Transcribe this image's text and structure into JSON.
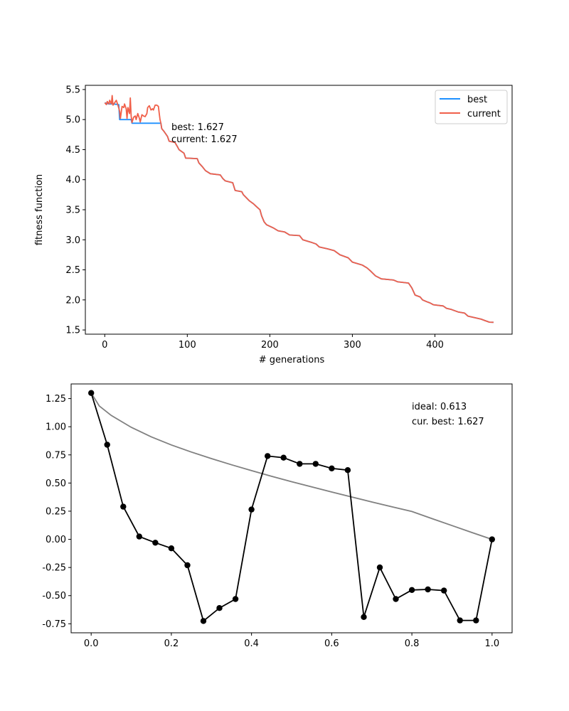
{
  "chart_data": [
    {
      "type": "line",
      "xlabel": "# generations",
      "ylabel": "fitness function",
      "xlim": [
        -23.5,
        493.5
      ],
      "ylim": [
        1.43,
        5.57
      ],
      "xticks": [
        0,
        100,
        200,
        300,
        400
      ],
      "yticks": [
        1.5,
        2.0,
        2.5,
        3.0,
        3.5,
        4.0,
        4.5,
        5.0,
        5.5
      ],
      "grid": false,
      "legend_position": "top-right",
      "colors": {
        "best": "#1e90ff",
        "current": "#f0604a"
      },
      "annotations": [
        "best: 1.627",
        "current: 1.627"
      ],
      "series": [
        {
          "name": "best",
          "points": [
            [
              0,
              5.28
            ],
            [
              5,
              5.26
            ],
            [
              10,
              5.26
            ],
            [
              17,
              5.25
            ],
            [
              18,
              5.0
            ],
            [
              32,
              5.0
            ],
            [
              33,
              4.94
            ],
            [
              68,
              4.94
            ],
            [
              69,
              4.85
            ],
            [
              72,
              4.8
            ],
            [
              76,
              4.72
            ],
            [
              78,
              4.64
            ],
            [
              85,
              4.62
            ],
            [
              88,
              4.55
            ],
            [
              90,
              4.5
            ],
            [
              96,
              4.44
            ],
            [
              98,
              4.36
            ],
            [
              112,
              4.35
            ],
            [
              114,
              4.28
            ],
            [
              118,
              4.22
            ],
            [
              122,
              4.15
            ],
            [
              128,
              4.1
            ],
            [
              140,
              4.08
            ],
            [
              143,
              4.02
            ],
            [
              146,
              3.98
            ],
            [
              155,
              3.95
            ],
            [
              158,
              3.82
            ],
            [
              166,
              3.8
            ],
            [
              168,
              3.75
            ],
            [
              175,
              3.65
            ],
            [
              180,
              3.6
            ],
            [
              184,
              3.55
            ],
            [
              188,
              3.5
            ],
            [
              190,
              3.4
            ],
            [
              193,
              3.3
            ],
            [
              196,
              3.25
            ],
            [
              204,
              3.2
            ],
            [
              210,
              3.15
            ],
            [
              218,
              3.13
            ],
            [
              224,
              3.08
            ],
            [
              236,
              3.07
            ],
            [
              240,
              3.0
            ],
            [
              250,
              2.96
            ],
            [
              256,
              2.93
            ],
            [
              260,
              2.88
            ],
            [
              270,
              2.85
            ],
            [
              278,
              2.82
            ],
            [
              285,
              2.75
            ],
            [
              295,
              2.7
            ],
            [
              300,
              2.63
            ],
            [
              312,
              2.58
            ],
            [
              318,
              2.53
            ],
            [
              322,
              2.48
            ],
            [
              328,
              2.4
            ],
            [
              335,
              2.35
            ],
            [
              350,
              2.33
            ],
            [
              355,
              2.3
            ],
            [
              368,
              2.28
            ],
            [
              372,
              2.2
            ],
            [
              376,
              2.08
            ],
            [
              382,
              2.05
            ],
            [
              385,
              2.0
            ],
            [
              390,
              1.97
            ],
            [
              394,
              1.95
            ],
            [
              398,
              1.92
            ],
            [
              410,
              1.9
            ],
            [
              414,
              1.86
            ],
            [
              420,
              1.84
            ],
            [
              428,
              1.8
            ],
            [
              436,
              1.78
            ],
            [
              440,
              1.73
            ],
            [
              450,
              1.7
            ],
            [
              456,
              1.68
            ],
            [
              460,
              1.66
            ],
            [
              466,
              1.63
            ],
            [
              471,
              1.627
            ]
          ]
        },
        {
          "name": "current",
          "points": [
            [
              0,
              5.28
            ],
            [
              2,
              5.25
            ],
            [
              3,
              5.3
            ],
            [
              5,
              5.26
            ],
            [
              6,
              5.32
            ],
            [
              8,
              5.26
            ],
            [
              9,
              5.4
            ],
            [
              10,
              5.24
            ],
            [
              12,
              5.28
            ],
            [
              14,
              5.32
            ],
            [
              16,
              5.24
            ],
            [
              18,
              5.14
            ],
            [
              19,
              5.02
            ],
            [
              21,
              5.22
            ],
            [
              23,
              5.2
            ],
            [
              24,
              5.26
            ],
            [
              26,
              5.18
            ],
            [
              27,
              5.02
            ],
            [
              28,
              5.2
            ],
            [
              30,
              5.1
            ],
            [
              31,
              5.36
            ],
            [
              32,
              5.06
            ],
            [
              33,
              4.95
            ],
            [
              35,
              5.04
            ],
            [
              37,
              5.06
            ],
            [
              38,
              5.0
            ],
            [
              40,
              5.1
            ],
            [
              42,
              5.02
            ],
            [
              43,
              4.96
            ],
            [
              45,
              5.08
            ],
            [
              47,
              5.06
            ],
            [
              49,
              5.05
            ],
            [
              51,
              5.1
            ],
            [
              52,
              5.2
            ],
            [
              54,
              5.23
            ],
            [
              56,
              5.16
            ],
            [
              58,
              5.18
            ],
            [
              59,
              5.16
            ],
            [
              61,
              5.24
            ],
            [
              63,
              5.24
            ],
            [
              65,
              5.22
            ],
            [
              66,
              5.1
            ],
            [
              67,
              5.0
            ],
            [
              68,
              4.94
            ],
            [
              69,
              4.85
            ],
            [
              72,
              4.8
            ],
            [
              76,
              4.72
            ],
            [
              78,
              4.64
            ],
            [
              85,
              4.62
            ],
            [
              88,
              4.55
            ],
            [
              90,
              4.5
            ],
            [
              96,
              4.44
            ],
            [
              98,
              4.36
            ],
            [
              112,
              4.35
            ],
            [
              114,
              4.28
            ],
            [
              118,
              4.22
            ],
            [
              122,
              4.15
            ],
            [
              128,
              4.1
            ],
            [
              140,
              4.08
            ],
            [
              143,
              4.02
            ],
            [
              146,
              3.98
            ],
            [
              155,
              3.95
            ],
            [
              158,
              3.82
            ],
            [
              166,
              3.8
            ],
            [
              168,
              3.75
            ],
            [
              175,
              3.65
            ],
            [
              180,
              3.6
            ],
            [
              184,
              3.55
            ],
            [
              188,
              3.5
            ],
            [
              190,
              3.4
            ],
            [
              193,
              3.3
            ],
            [
              196,
              3.25
            ],
            [
              204,
              3.2
            ],
            [
              210,
              3.15
            ],
            [
              218,
              3.13
            ],
            [
              224,
              3.08
            ],
            [
              236,
              3.07
            ],
            [
              240,
              3.0
            ],
            [
              250,
              2.96
            ],
            [
              256,
              2.93
            ],
            [
              260,
              2.88
            ],
            [
              270,
              2.85
            ],
            [
              278,
              2.82
            ],
            [
              285,
              2.75
            ],
            [
              295,
              2.7
            ],
            [
              300,
              2.63
            ],
            [
              312,
              2.58
            ],
            [
              318,
              2.53
            ],
            [
              322,
              2.48
            ],
            [
              328,
              2.4
            ],
            [
              335,
              2.35
            ],
            [
              350,
              2.33
            ],
            [
              355,
              2.3
            ],
            [
              368,
              2.28
            ],
            [
              372,
              2.2
            ],
            [
              376,
              2.08
            ],
            [
              382,
              2.05
            ],
            [
              385,
              2.0
            ],
            [
              390,
              1.97
            ],
            [
              394,
              1.95
            ],
            [
              398,
              1.92
            ],
            [
              410,
              1.9
            ],
            [
              414,
              1.86
            ],
            [
              420,
              1.84
            ],
            [
              428,
              1.8
            ],
            [
              436,
              1.78
            ],
            [
              440,
              1.73
            ],
            [
              450,
              1.7
            ],
            [
              456,
              1.68
            ],
            [
              460,
              1.66
            ],
            [
              466,
              1.63
            ],
            [
              471,
              1.627
            ]
          ]
        }
      ]
    },
    {
      "type": "line",
      "xlabel": "",
      "ylabel": "",
      "xlim": [
        -0.05,
        1.05
      ],
      "ylim": [
        -0.83,
        1.38
      ],
      "xticks": [
        0.0,
        0.2,
        0.4,
        0.6,
        0.8,
        1.0
      ],
      "yticks": [
        -0.75,
        -0.5,
        -0.25,
        0.0,
        0.25,
        0.5,
        0.75,
        1.0,
        1.25
      ],
      "grid": false,
      "colors": {
        "ideal": "#808080",
        "solution": "#000000"
      },
      "annotations": [
        "ideal: 0.613",
        "cur. best: 1.627"
      ],
      "series": [
        {
          "name": "",
          "style": "curve",
          "points": [
            [
              0,
              1.3
            ],
            [
              0.02,
              1.185
            ],
            [
              0.05,
              1.1
            ],
            [
              0.1,
              0.995
            ],
            [
              0.15,
              0.91
            ],
            [
              0.2,
              0.838
            ],
            [
              0.25,
              0.775
            ],
            [
              0.3,
              0.717
            ],
            [
              0.35,
              0.662
            ],
            [
              0.4,
              0.61
            ],
            [
              0.45,
              0.56
            ],
            [
              0.5,
              0.512
            ],
            [
              0.55,
              0.466
            ],
            [
              0.6,
              0.42
            ],
            [
              0.65,
              0.376
            ],
            [
              0.7,
              0.332
            ],
            [
              0.75,
              0.289
            ],
            [
              0.8,
              0.247
            ],
            [
              0.85,
              0.184
            ],
            [
              0.9,
              0.122
            ],
            [
              0.95,
              0.06
            ],
            [
              1.0,
              0.0
            ]
          ]
        },
        {
          "name": "",
          "style": "markers",
          "points": [
            [
              0.0,
              1.3
            ],
            [
              0.04,
              0.84
            ],
            [
              0.08,
              0.29
            ],
            [
              0.12,
              0.025
            ],
            [
              0.16,
              -0.03
            ],
            [
              0.2,
              -0.08
            ],
            [
              0.24,
              -0.23
            ],
            [
              0.28,
              -0.725
            ],
            [
              0.32,
              -0.61
            ],
            [
              0.36,
              -0.53
            ],
            [
              0.4,
              0.265
            ],
            [
              0.44,
              0.74
            ],
            [
              0.48,
              0.725
            ],
            [
              0.52,
              0.67
            ],
            [
              0.56,
              0.67
            ],
            [
              0.6,
              0.63
            ],
            [
              0.64,
              0.615
            ],
            [
              0.68,
              -0.69
            ],
            [
              0.72,
              -0.25
            ],
            [
              0.76,
              -0.53
            ],
            [
              0.8,
              -0.45
            ],
            [
              0.84,
              -0.445
            ],
            [
              0.88,
              -0.455
            ],
            [
              0.92,
              -0.72
            ],
            [
              0.96,
              -0.72
            ],
            [
              1.0,
              0.0
            ]
          ]
        }
      ]
    }
  ]
}
